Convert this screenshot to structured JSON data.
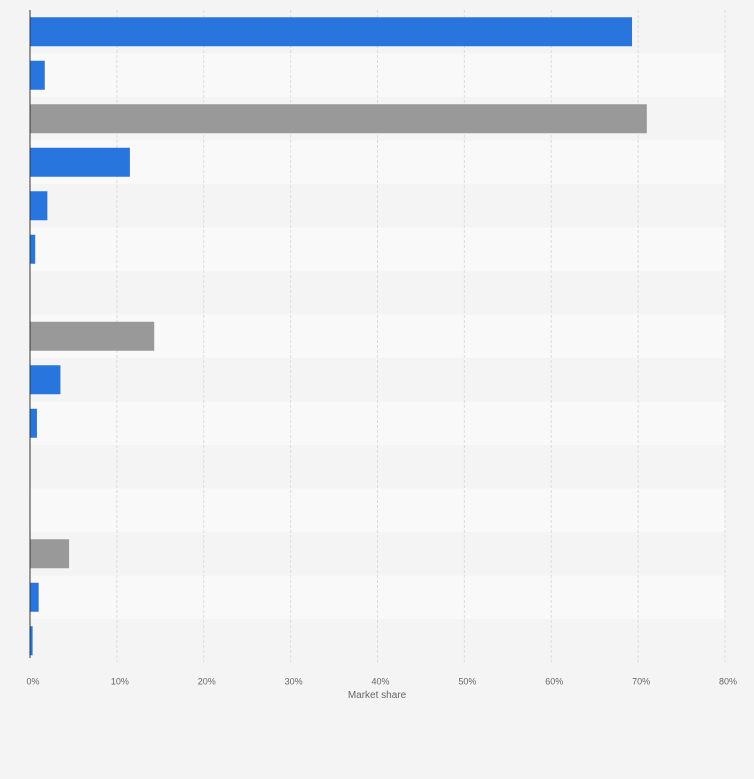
{
  "chart_data": {
    "type": "bar",
    "orientation": "horizontal",
    "xlabel": "Market share",
    "xlim": [
      0,
      80
    ],
    "x_ticks": [
      "0%",
      "10%",
      "20%",
      "30%",
      "40%",
      "50%",
      "60%",
      "70%",
      "80%"
    ],
    "grid": true,
    "bars": [
      {
        "value": 69.3,
        "color": "#2876dd"
      },
      {
        "value": 1.7,
        "color": "#2876dd"
      },
      {
        "value": 71.0,
        "color": "#999999"
      },
      {
        "value": 11.5,
        "color": "#2876dd"
      },
      {
        "value": 2.0,
        "color": "#2876dd"
      },
      {
        "value": 0.6,
        "color": "#2876dd"
      },
      {
        "value": 0,
        "color": "#2876dd"
      },
      {
        "value": 14.3,
        "color": "#999999"
      },
      {
        "value": 3.5,
        "color": "#2876dd"
      },
      {
        "value": 0.8,
        "color": "#2876dd"
      },
      {
        "value": 0,
        "color": "#2876dd"
      },
      {
        "value": 0,
        "color": "#2876dd"
      },
      {
        "value": 4.5,
        "color": "#999999"
      },
      {
        "value": 1.0,
        "color": "#2876dd"
      },
      {
        "value": 0.3,
        "color": "#2876dd"
      }
    ]
  }
}
